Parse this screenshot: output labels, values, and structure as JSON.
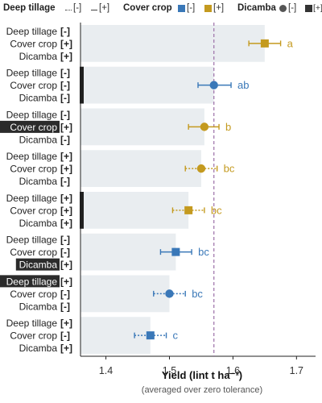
{
  "legend": {
    "deep_tillage_label": "Deep tillage",
    "deep_tillage_off": "[-]",
    "deep_tillage_on": "[+]",
    "cover_crop_label": "Cover crop",
    "cover_crop_off": "[-]",
    "cover_crop_on": "[+]",
    "dicamba_label": "Dicamba",
    "dicamba_off": "[-]",
    "dicamba_on": "[+]"
  },
  "colors": {
    "cover_crop_off": "#3a78b8",
    "cover_crop_on": "#c49a1f",
    "bar": "#e9edf0",
    "ref_line": "#9b6fa8",
    "highlight_bg": "#2b2b2b"
  },
  "chart_data": {
    "type": "scatter",
    "xlabel": "Yield (lint t ha⁻¹)",
    "xlabel_sub": "(averaged over zero tolerance)",
    "xlim": [
      1.36,
      1.73
    ],
    "xticks": [
      "1.4",
      "1.5",
      "1.6",
      "1.7"
    ],
    "xtick_values": [
      1.4,
      1.5,
      1.6,
      1.7
    ],
    "reference_line": 1.57,
    "factor_names": [
      "Deep tillage",
      "Cover crop",
      "Dicamba"
    ],
    "groups": [
      {
        "levels": [
          "[-]",
          "[+]",
          "[+]"
        ],
        "highlight": null,
        "side_bar": false,
        "value": 1.65,
        "ci": [
          1.625,
          1.675
        ],
        "letter": "a",
        "color": "gold",
        "marker": "square",
        "line": "solid"
      },
      {
        "levels": [
          "[-]",
          "[-]",
          "[-]"
        ],
        "highlight": null,
        "side_bar": true,
        "value": 1.57,
        "ci": [
          1.545,
          1.597
        ],
        "letter": "ab",
        "color": "blue",
        "marker": "circle",
        "line": "solid"
      },
      {
        "levels": [
          "[-]",
          "[+]",
          "[-]"
        ],
        "highlight": "Cover crop",
        "side_bar": false,
        "value": 1.555,
        "ci": [
          1.53,
          1.578
        ],
        "letter": "b",
        "color": "gold",
        "marker": "circle",
        "line": "solid"
      },
      {
        "levels": [
          "[+]",
          "[+]",
          "[-]"
        ],
        "highlight": null,
        "side_bar": false,
        "value": 1.55,
        "ci": [
          1.525,
          1.575
        ],
        "letter": "bc",
        "color": "gold",
        "marker": "circle",
        "line": "dotted"
      },
      {
        "levels": [
          "[+]",
          "[+]",
          "[+]"
        ],
        "highlight": null,
        "side_bar": true,
        "value": 1.53,
        "ci": [
          1.505,
          1.555
        ],
        "letter": "bc",
        "color": "gold",
        "marker": "square",
        "line": "dotted"
      },
      {
        "levels": [
          "[-]",
          "[-]",
          "[+]"
        ],
        "highlight": "Dicamba",
        "side_bar": false,
        "value": 1.51,
        "ci": [
          1.486,
          1.535
        ],
        "letter": "bc",
        "color": "blue",
        "marker": "square",
        "line": "solid"
      },
      {
        "levels": [
          "[+]",
          "[-]",
          "[-]"
        ],
        "highlight": "Deep tillage",
        "side_bar": false,
        "value": 1.5,
        "ci": [
          1.475,
          1.525
        ],
        "letter": "bc",
        "color": "blue",
        "marker": "circle",
        "line": "dotted"
      },
      {
        "levels": [
          "[+]",
          "[-]",
          "[+]"
        ],
        "highlight": null,
        "side_bar": false,
        "value": 1.47,
        "ci": [
          1.445,
          1.495
        ],
        "letter": "c",
        "color": "blue",
        "marker": "square",
        "line": "dotted"
      }
    ]
  }
}
